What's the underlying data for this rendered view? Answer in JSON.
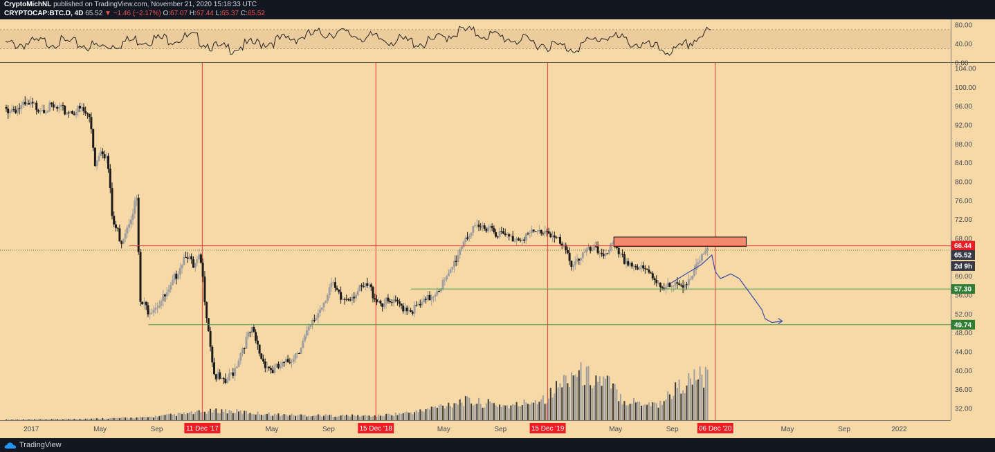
{
  "header": {
    "author": "CryptoMichNL",
    "published_text": "published on TradingView.com, November 21, 2020 15:18:33 UTC",
    "symbol": "CRYPTOCAP:BTC.D, 4D",
    "last": "65.52",
    "change": "−1.46 (−2.17%)",
    "o_label": "O:",
    "o_value": "67.07",
    "h_label": "H:",
    "h_value": "67.44",
    "l_label": "L:",
    "l_value": "65.37",
    "c_label": "C:",
    "c_value": "65.52"
  },
  "footer": {
    "brand": "TradingView"
  },
  "colors": {
    "background": "#f7d9a8",
    "up_candle": "#9e9e9e",
    "down_candle": "#1a1a1a",
    "vertical_marker": "#e53935",
    "resistance_line": "#e53935",
    "support_line": "#43a047",
    "resistance_box": "#f28b6e",
    "projection": "#3949ab",
    "label_red": "#ef1c24",
    "label_green": "#2e7d32",
    "label_dark": "#363a45"
  },
  "chart_data": {
    "type": "candlestick",
    "symbol": "CRYPTOCAP:BTC.D",
    "interval": "4D",
    "ylim": [
      30,
      104
    ],
    "yticks": [
      "104.00",
      "100.00",
      "96.00",
      "92.00",
      "88.00",
      "84.00",
      "80.00",
      "76.00",
      "72.00",
      "68.00",
      "64.00",
      "60.00",
      "56.00",
      "52.00",
      "48.00",
      "44.00",
      "40.00",
      "36.00",
      "32.00"
    ],
    "xticks": [
      "2017",
      "May",
      "Sep",
      "May",
      "Sep",
      "May",
      "Sep",
      "May",
      "Sep",
      "May",
      "Sep",
      "2022"
    ],
    "price_path": [
      [
        2016.8,
        95.8
      ],
      [
        2016.95,
        96.6
      ],
      [
        2017.05,
        96.3
      ],
      [
        2017.15,
        95.5
      ],
      [
        2017.25,
        95.8
      ],
      [
        2017.3,
        94.0
      ],
      [
        2017.33,
        84.0
      ],
      [
        2017.36,
        88.0
      ],
      [
        2017.4,
        85.5
      ],
      [
        2017.43,
        72.0
      ],
      [
        2017.46,
        70.0
      ],
      [
        2017.48,
        68.0
      ],
      [
        2017.52,
        72.0
      ],
      [
        2017.57,
        77.0
      ],
      [
        2017.59,
        55.0
      ],
      [
        2017.64,
        53.5
      ],
      [
        2017.7,
        55.0
      ],
      [
        2017.76,
        57.0
      ],
      [
        2017.8,
        61.0
      ],
      [
        2017.86,
        66.0
      ],
      [
        2017.9,
        62.0
      ],
      [
        2017.94,
        64.5
      ],
      [
        2017.97,
        55.0
      ],
      [
        2018.02,
        40.0
      ],
      [
        2018.08,
        37.5
      ],
      [
        2018.14,
        41.0
      ],
      [
        2018.19,
        46.0
      ],
      [
        2018.24,
        49.0
      ],
      [
        2018.3,
        43.0
      ],
      [
        2018.36,
        40.5
      ],
      [
        2018.44,
        42.0
      ],
      [
        2018.52,
        45.5
      ],
      [
        2018.6,
        51.0
      ],
      [
        2018.66,
        55.5
      ],
      [
        2018.7,
        59.0
      ],
      [
        2018.76,
        55.5
      ],
      [
        2018.84,
        57.0
      ],
      [
        2018.92,
        58.5
      ],
      [
        2018.96,
        56.0
      ],
      [
        2019.0,
        55.0
      ],
      [
        2019.1,
        54.5
      ],
      [
        2019.18,
        53.5
      ],
      [
        2019.25,
        55.0
      ],
      [
        2019.32,
        58.0
      ],
      [
        2019.38,
        60.0
      ],
      [
        2019.43,
        64.5
      ],
      [
        2019.48,
        69.0
      ],
      [
        2019.55,
        70.5
      ],
      [
        2019.62,
        71.5
      ],
      [
        2019.68,
        69.5
      ],
      [
        2019.75,
        68.5
      ],
      [
        2019.8,
        69.0
      ],
      [
        2019.88,
        69.5
      ],
      [
        2019.96,
        70.5
      ],
      [
        2020.02,
        68.0
      ],
      [
        2020.06,
        66.0
      ],
      [
        2020.1,
        63.5
      ],
      [
        2020.16,
        65.0
      ],
      [
        2020.22,
        66.0
      ],
      [
        2020.28,
        65.5
      ],
      [
        2020.34,
        67.0
      ],
      [
        2020.38,
        64.5
      ],
      [
        2020.44,
        63.5
      ],
      [
        2020.5,
        62.0
      ],
      [
        2020.56,
        61.0
      ],
      [
        2020.62,
        59.0
      ],
      [
        2020.68,
        58.0
      ],
      [
        2020.72,
        58.5
      ],
      [
        2020.76,
        59.5
      ],
      [
        2020.8,
        60.5
      ],
      [
        2020.84,
        63.0
      ],
      [
        2020.88,
        65.5
      ]
    ],
    "volume_peaks": [
      [
        2016.8,
        0.5
      ],
      [
        2017.3,
        1.5
      ],
      [
        2017.6,
        2.5
      ],
      [
        2017.9,
        7
      ],
      [
        2018.05,
        9
      ],
      [
        2018.4,
        5
      ],
      [
        2018.95,
        4
      ],
      [
        2019.2,
        8
      ],
      [
        2019.45,
        18
      ],
      [
        2019.75,
        13
      ],
      [
        2019.95,
        22
      ],
      [
        2020.1,
        45
      ],
      [
        2020.3,
        35
      ],
      [
        2020.4,
        18
      ],
      [
        2020.6,
        15
      ],
      [
        2020.7,
        30
      ],
      [
        2020.85,
        42
      ],
      [
        2020.89,
        36
      ]
    ],
    "rsi": {
      "ylim": [
        0,
        80
      ],
      "yticks": [
        "80.00",
        "40.00",
        "0.00"
      ],
      "band": [
        30,
        70
      ],
      "path": [
        [
          2016.8,
          45
        ],
        [
          2017.1,
          52
        ],
        [
          2017.35,
          40
        ],
        [
          2017.55,
          55
        ],
        [
          2017.9,
          60
        ],
        [
          2018.05,
          35
        ],
        [
          2018.4,
          55
        ],
        [
          2018.7,
          72
        ],
        [
          2018.95,
          58
        ],
        [
          2019.25,
          48
        ],
        [
          2019.45,
          75
        ],
        [
          2019.7,
          60
        ],
        [
          2019.95,
          45
        ],
        [
          2020.1,
          38
        ],
        [
          2020.3,
          64
        ],
        [
          2020.55,
          40
        ],
        [
          2020.7,
          30
        ],
        [
          2020.85,
          65
        ],
        [
          2020.89,
          72
        ],
        [
          2020.91,
          68
        ]
      ]
    },
    "vertical_markers": [
      {
        "x": 2017.945,
        "label": "11 Dec '17"
      },
      {
        "x": 2018.955,
        "label": "15 Dec '18"
      },
      {
        "x": 2019.955,
        "label": "15 Dec '19"
      },
      {
        "x": 2020.93,
        "label": "06 Dec '20"
      }
    ],
    "horizontal_levels": [
      {
        "value": 66.44,
        "label": "66.44",
        "kind": "resistance",
        "from": 2017.52
      },
      {
        "value": 57.3,
        "label": "57.30",
        "kind": "support",
        "from": 2019.16
      },
      {
        "value": 49.74,
        "label": "49.74",
        "kind": "support",
        "from": 2017.63
      }
    ],
    "current_price": {
      "value": 65.52,
      "label": "65.52"
    },
    "countdown": {
      "label": "2d 9h"
    },
    "resistance_zone": {
      "x_from": 2020.34,
      "x_to": 2021.11,
      "y_from": 66.3,
      "y_to": 68.3
    },
    "projection_path": [
      [
        2020.67,
        58.5
      ],
      [
        2020.76,
        60.5
      ],
      [
        2020.85,
        62.5
      ],
      [
        2020.91,
        64.5
      ],
      [
        2020.93,
        61
      ],
      [
        2020.96,
        59.5
      ],
      [
        2021.02,
        60.5
      ],
      [
        2021.07,
        59.5
      ],
      [
        2021.15,
        55.5
      ],
      [
        2021.2,
        53
      ],
      [
        2021.22,
        51
      ],
      [
        2021.26,
        50.2
      ],
      [
        2021.32,
        50.5
      ]
    ]
  }
}
